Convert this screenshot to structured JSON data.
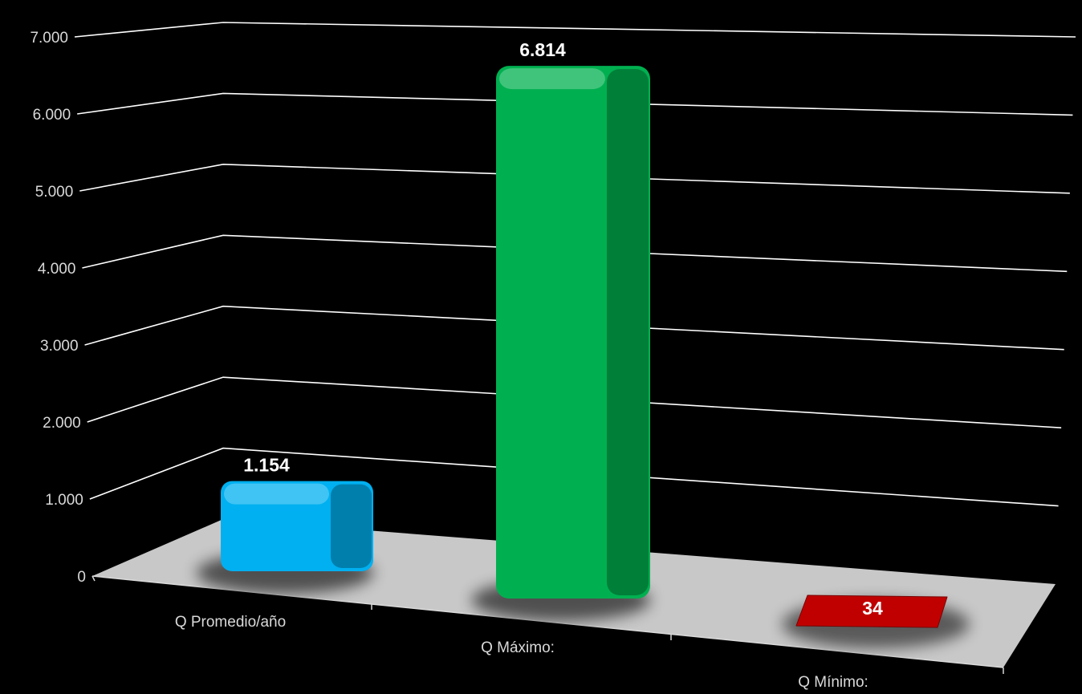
{
  "chart_data": {
    "type": "bar",
    "style": "3d-perspective",
    "categories": [
      "Q Promedio/año",
      "Q Máximo:",
      "Q Mínimo:"
    ],
    "values": [
      1154,
      6814,
      34
    ],
    "data_labels": [
      "1.154",
      "6.814",
      "34"
    ],
    "bar_colors": [
      "#00b0f0",
      "#00b050",
      "#c00000"
    ],
    "ylim": [
      0,
      7000
    ],
    "y_ticks": [
      0,
      1000,
      2000,
      3000,
      4000,
      5000,
      6000,
      7000
    ],
    "y_tick_labels": [
      "0",
      "1.000",
      "2.000",
      "3.000",
      "4.000",
      "5.000",
      "6.000",
      "7.000"
    ],
    "grid": true,
    "legend": "none",
    "background": "#000000",
    "floor_color": "#c8c8c8"
  }
}
